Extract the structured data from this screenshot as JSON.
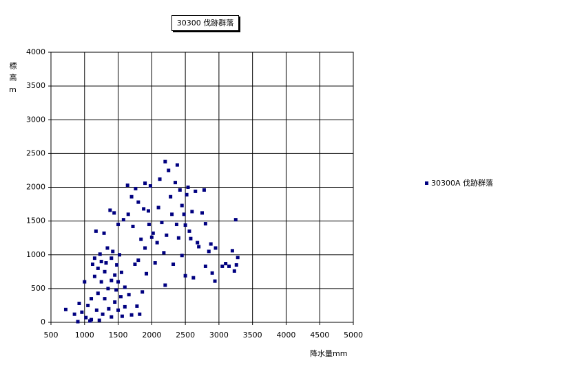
{
  "chart_data": {
    "type": "scatter",
    "title": "30300 伐跡群落",
    "x_label": "降水量mm",
    "y_label": "標高m",
    "xlim": [
      500,
      5000
    ],
    "xticks": [
      500,
      1000,
      1500,
      2000,
      2500,
      3000,
      3500,
      4000,
      4500,
      5000
    ],
    "ylim": [
      0,
      4000
    ],
    "yticks": [
      0,
      500,
      1000,
      1500,
      2000,
      2500,
      3000,
      3500,
      4000
    ],
    "grid": true,
    "legend": "right",
    "x": [
      720,
      850,
      900,
      920,
      960,
      1000,
      1020,
      1050,
      1080,
      1100,
      1100,
      1120,
      1150,
      1150,
      1170,
      1180,
      1200,
      1200,
      1220,
      1230,
      1250,
      1250,
      1270,
      1290,
      1300,
      1300,
      1320,
      1340,
      1350,
      1360,
      1380,
      1400,
      1400,
      1400,
      1420,
      1440,
      1450,
      1450,
      1470,
      1480,
      1500,
      1500,
      1500,
      1520,
      1540,
      1550,
      1560,
      1580,
      1600,
      1600,
      1640,
      1650,
      1660,
      1700,
      1700,
      1720,
      1750,
      1760,
      1780,
      1800,
      1800,
      1820,
      1840,
      1860,
      1880,
      1900,
      1900,
      1920,
      1950,
      1960,
      1980,
      2000,
      2020,
      2050,
      2080,
      2100,
      2120,
      2150,
      2180,
      2200,
      2200,
      2220,
      2250,
      2280,
      2300,
      2320,
      2350,
      2370,
      2380,
      2400,
      2420,
      2450,
      2450,
      2480,
      2500,
      2500,
      2520,
      2540,
      2560,
      2580,
      2600,
      2620,
      2650,
      2680,
      2700,
      2750,
      2780,
      2800,
      2800,
      2850,
      2880,
      2900,
      2940,
      2950,
      3050,
      3100,
      3150,
      3200,
      3230,
      3250,
      3260,
      3280
    ],
    "series": [
      {
        "name": "30300A 伐跡群落",
        "color": "#000080",
        "values": [
          190,
          120,
          10,
          280,
          150,
          600,
          70,
          250,
          20,
          40,
          350,
          860,
          950,
          680,
          1350,
          180,
          800,
          430,
          30,
          1010,
          600,
          900,
          120,
          1320,
          750,
          350,
          880,
          1100,
          500,
          200,
          1660,
          950,
          620,
          80,
          1050,
          1620,
          700,
          300,
          480,
          850,
          1450,
          600,
          180,
          1000,
          380,
          740,
          90,
          1520,
          230,
          520,
          2030,
          1600,
          410,
          1860,
          110,
          1420,
          860,
          1980,
          240,
          1780,
          920,
          120,
          1230,
          450,
          1680,
          2060,
          1100,
          720,
          1650,
          1450,
          2020,
          1260,
          1320,
          880,
          1180,
          1700,
          2120,
          1480,
          1030,
          2380,
          550,
          1290,
          2250,
          1860,
          1600,
          860,
          2070,
          1450,
          2330,
          1250,
          1960,
          1730,
          990,
          1600,
          1440,
          690,
          1890,
          2000,
          1350,
          1240,
          1640,
          660,
          1940,
          1180,
          1120,
          1620,
          1960,
          1460,
          830,
          1050,
          1160,
          730,
          610,
          1100,
          830,
          870,
          830,
          1060,
          760,
          1520,
          850,
          960
        ]
      }
    ]
  }
}
